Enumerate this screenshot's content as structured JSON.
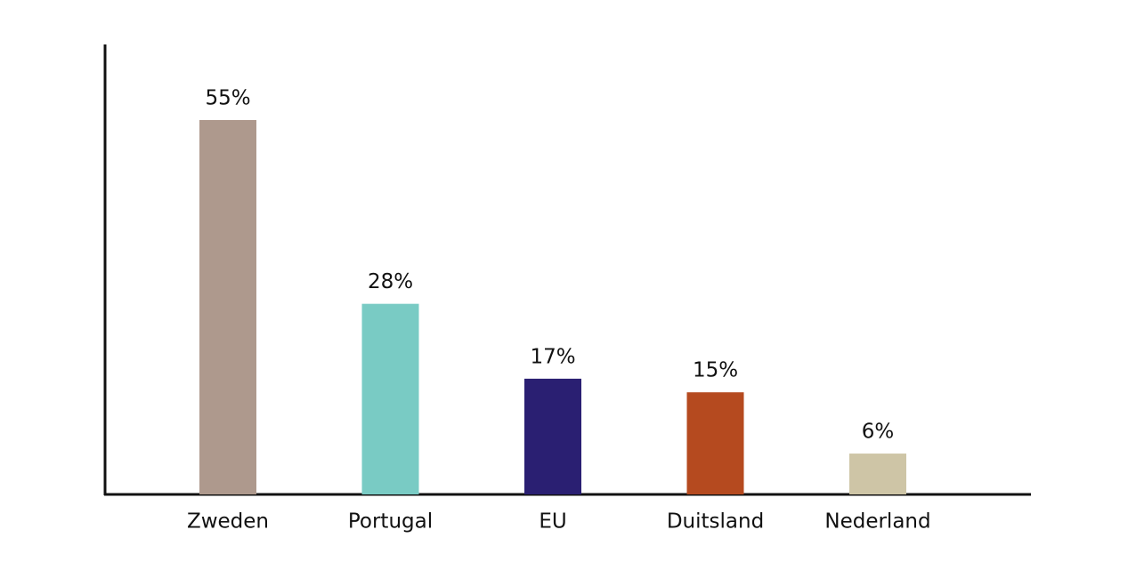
{
  "chart_data": {
    "type": "bar",
    "categories": [
      "Zweden",
      "Portugal",
      "EU",
      "Duitsland",
      "Nederland"
    ],
    "values": [
      55,
      28,
      17,
      15,
      6
    ],
    "value_labels": [
      "55%",
      "28%",
      "17%",
      "15%",
      "6%"
    ],
    "colors": [
      "#ae998d",
      "#79cbc4",
      "#2a1f72",
      "#b54a1f",
      "#cec5a6"
    ]
  }
}
